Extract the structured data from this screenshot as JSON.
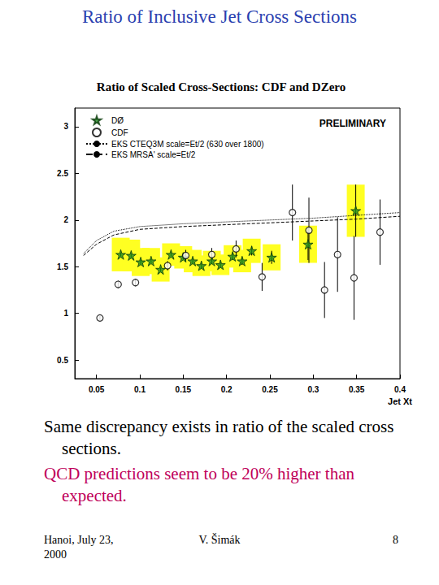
{
  "slide": {
    "title": "Ratio of Inclusive Jet Cross Sections",
    "body": [
      {
        "text": "Same discrepancy exists in ratio of the scaled cross sections.",
        "color": "#000000"
      },
      {
        "text": "QCD predictions seem to be 20% higher than expected.",
        "color": "#c0005a"
      }
    ],
    "footer": {
      "left": "Hanoi, July 23, 2000",
      "center": "V. Šimák",
      "right": "8"
    }
  },
  "chart_data": {
    "type": "scatter",
    "title": "Ratio of Scaled Cross-Sections: CDF and DZero",
    "annotation": "PRELIMINARY",
    "x_label": "Jet Xt",
    "xlim": [
      0.025,
      0.4
    ],
    "xticks": [
      0.05,
      0.1,
      0.15,
      0.2,
      0.25,
      0.3,
      0.35,
      0.4
    ],
    "ylim": [
      0.3,
      3.2
    ],
    "yticks": [
      0.5,
      1,
      1.5,
      2,
      2.5,
      3
    ],
    "grid": false,
    "legend": "upper left",
    "series": [
      {
        "name": "DØ",
        "type": "scatter",
        "marker": "star",
        "color": "#1e8c1e",
        "x": [
          0.078,
          0.09,
          0.101,
          0.113,
          0.124,
          0.136,
          0.15,
          0.161,
          0.171,
          0.183,
          0.193,
          0.207,
          0.218,
          0.229,
          0.252,
          0.294,
          0.349
        ],
        "values": [
          1.63,
          1.62,
          1.55,
          1.56,
          1.47,
          1.63,
          1.6,
          1.56,
          1.51,
          1.56,
          1.52,
          1.61,
          1.56,
          1.67,
          1.6,
          1.74,
          2.1
        ],
        "errors": [
          0.02,
          0.02,
          0.02,
          0.02,
          0.02,
          0.02,
          0.02,
          0.03,
          0.03,
          0.03,
          0.03,
          0.04,
          0.04,
          0.05,
          0.07,
          0.17,
          0.28
        ],
        "sys_errors": [
          0.18,
          0.17,
          0.15,
          0.14,
          0.13,
          0.12,
          0.12,
          0.12,
          0.11,
          0.11,
          0.11,
          0.12,
          0.12,
          0.13,
          0.14,
          0.2,
          0.28
        ]
      },
      {
        "name": "CDF",
        "type": "scatter",
        "marker": "circle",
        "color": "#000000",
        "x": [
          0.054,
          0.075,
          0.095,
          0.132,
          0.153,
          0.183,
          0.211,
          0.241,
          0.276,
          0.295,
          0.313,
          0.328,
          0.347,
          0.377
        ],
        "values": [
          0.95,
          1.31,
          1.33,
          1.51,
          1.62,
          1.63,
          1.69,
          1.39,
          2.08,
          1.89,
          1.25,
          1.63,
          1.38,
          1.87
        ],
        "errors": [
          0.02,
          0.04,
          0.04,
          0.05,
          0.06,
          0.07,
          0.09,
          0.15,
          0.3,
          0.35,
          0.3,
          0.4,
          0.45,
          0.35
        ]
      },
      {
        "name": "EKS CTEQ3M scale=Et/2 (630 over 1800)",
        "type": "line",
        "line_style": "dotted",
        "color": "#000000",
        "x": [
          0.035,
          0.05,
          0.07,
          0.1,
          0.15,
          0.2,
          0.25,
          0.3,
          0.35,
          0.4
        ],
        "values": [
          1.64,
          1.78,
          1.88,
          1.93,
          1.96,
          1.98,
          2.0,
          2.02,
          2.05,
          2.08
        ]
      },
      {
        "name": "EKS MRSA' scale=Et/2",
        "type": "line",
        "line_style": "dashed",
        "color": "#000000",
        "x": [
          0.035,
          0.05,
          0.07,
          0.1,
          0.15,
          0.2,
          0.25,
          0.3,
          0.35,
          0.4
        ],
        "values": [
          1.62,
          1.74,
          1.84,
          1.9,
          1.93,
          1.95,
          1.97,
          1.99,
          2.01,
          2.04
        ]
      }
    ]
  }
}
